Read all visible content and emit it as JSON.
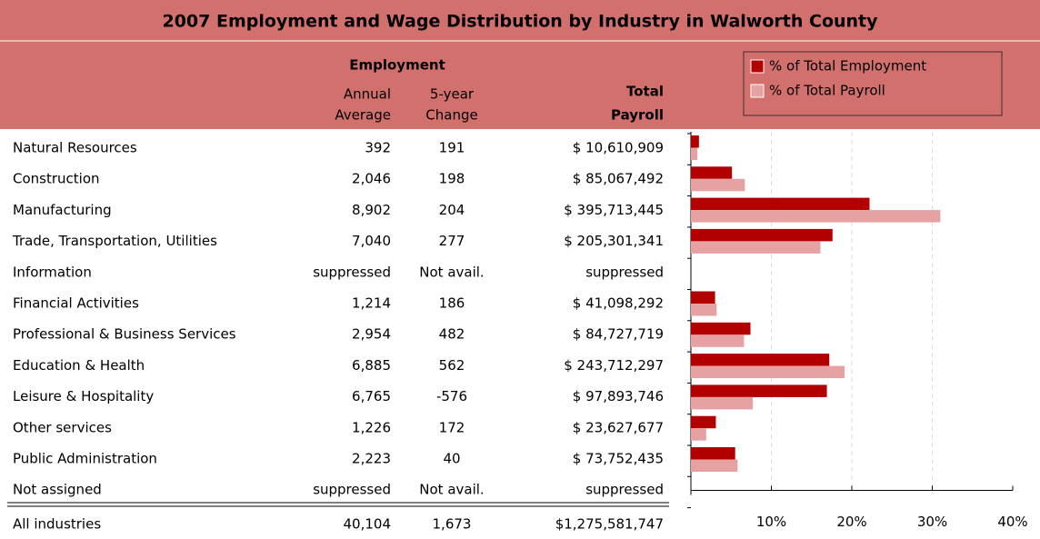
{
  "header": {
    "title": "2007 Employment and Wage Distribution by Industry in Walworth County",
    "employment": "Employment",
    "annual": [
      "Annual",
      "Average"
    ],
    "change": [
      "5-year",
      "Change"
    ],
    "payroll": [
      "Total",
      "Payroll"
    ]
  },
  "table": {
    "rows": [
      [
        "Natural Resources",
        "392",
        "191",
        "$ 10,610,909"
      ],
      [
        "Construction",
        "2,046",
        "198",
        "$ 85,067,492"
      ],
      [
        "Manufacturing",
        "8,902",
        "204",
        "$ 395,713,445"
      ],
      [
        "Trade, Transportation, Utilities",
        "7,040",
        "277",
        "$ 205,301,341"
      ],
      [
        "Information",
        "suppressed",
        "Not avail.",
        "suppressed"
      ],
      [
        "Financial Activities",
        "1,214",
        "186",
        "$ 41,098,292"
      ],
      [
        "Professional & Business Services",
        "2,954",
        "482",
        "$ 84,727,719"
      ],
      [
        "Education & Health",
        "6,885",
        "562",
        "$ 243,712,297"
      ],
      [
        "Leisure & Hospitality",
        "6,765",
        "-576",
        "$ 97,893,746"
      ],
      [
        "Other services",
        "1,226",
        "172",
        "$ 23,627,677"
      ],
      [
        "Public Administration",
        "2,223",
        "40",
        "$ 73,752,435"
      ],
      [
        "Not assigned",
        "suppressed",
        "Not avail.",
        "suppressed"
      ]
    ],
    "total": [
      "All industries",
      "40,104",
      "1,673",
      "$1,275,581,747"
    ]
  },
  "chart_data": {
    "type": "bar",
    "orientation": "horizontal",
    "series": [
      {
        "name": "% of Total Employment",
        "color": "#b20000",
        "values": [
          1.0,
          5.1,
          22.2,
          17.6,
          null,
          3.0,
          7.4,
          17.2,
          16.9,
          3.1,
          5.5,
          null
        ]
      },
      {
        "name": "% of Total Payroll",
        "color": "#e6a2a2",
        "values": [
          0.8,
          6.7,
          31.0,
          16.1,
          null,
          3.2,
          6.6,
          19.1,
          7.7,
          1.9,
          5.8,
          null
        ]
      }
    ],
    "xlim": [
      0,
      40
    ],
    "xticks": [
      {
        "value": 10,
        "label": "10%"
      },
      {
        "value": 20,
        "label": "20%"
      },
      {
        "value": 30,
        "label": "30%"
      },
      {
        "value": 40,
        "label": "40%"
      }
    ],
    "grid": true
  }
}
